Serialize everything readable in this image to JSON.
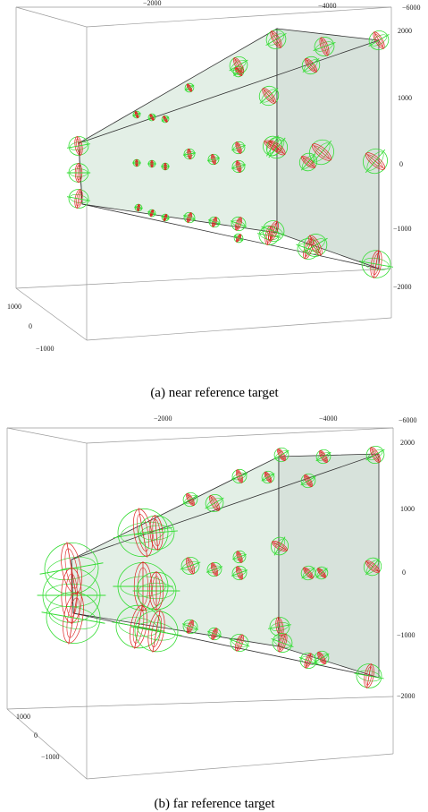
{
  "colors": {
    "box": "#9a9a9a",
    "edge": "#333333",
    "plane_fill": "#e3efe6",
    "side_fill": "#d7e2db",
    "ellipse_outer": "#33dd33",
    "ellipse_inner": "#dd2222"
  },
  "panels": [
    {
      "id": "a",
      "caption": "(a)  near reference target",
      "top_ticks": [
        "−2000",
        "−4000",
        "−6000"
      ],
      "right_ticks": [
        "2000",
        "1000",
        "0",
        "−1000",
        "−2000"
      ],
      "left_ticks": [
        "1000",
        "0",
        "−1000"
      ]
    },
    {
      "id": "b",
      "caption": "(b)  far reference target",
      "top_ticks": [
        "−2000",
        "−4000",
        "−6000"
      ],
      "right_ticks": [
        "2000",
        "1000",
        "0",
        "−1000",
        "−2000"
      ],
      "left_ticks": [
        "1000",
        "0",
        "−1000"
      ]
    }
  ]
}
